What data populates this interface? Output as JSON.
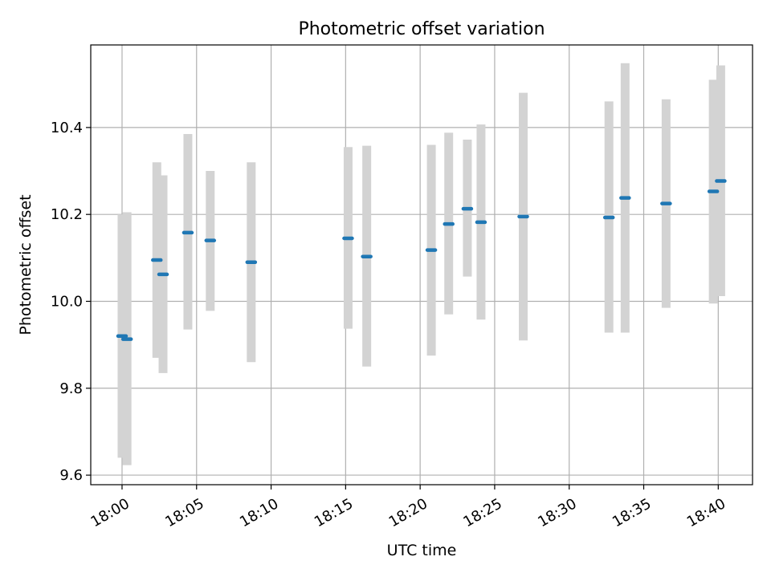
{
  "chart_data": {
    "type": "scatter",
    "title": "Photometric offset variation",
    "xlabel": "UTC time",
    "ylabel": "Photometric offset",
    "x_unit": "minutes after 18:00",
    "xlim": [
      -2.1,
      42.3
    ],
    "ylim": [
      9.578,
      10.59
    ],
    "grid": true,
    "x_ticks": [
      0,
      5,
      10,
      15,
      20,
      25,
      30,
      35,
      40
    ],
    "x_tick_labels": [
      "18:00",
      "18:05",
      "18:10",
      "18:15",
      "18:20",
      "18:25",
      "18:30",
      "18:35",
      "18:40"
    ],
    "y_ticks": [
      9.6,
      9.8,
      10.0,
      10.2,
      10.4
    ],
    "y_tick_labels": [
      "9.6",
      "9.8",
      "10.0",
      "10.2",
      "10.4"
    ],
    "colors": {
      "point": "#1f77b4",
      "errorbar": "#d3d3d3",
      "grid": "#b0b0b0"
    },
    "points": [
      {
        "time": "18:00:00",
        "y": 9.92,
        "ylow": 9.64,
        "yhigh": 10.2
      },
      {
        "time": "18:00:20",
        "y": 9.913,
        "ylow": 9.623,
        "yhigh": 10.205
      },
      {
        "time": "18:02:20",
        "y": 10.095,
        "ylow": 9.87,
        "yhigh": 10.32
      },
      {
        "time": "18:02:45",
        "y": 10.062,
        "ylow": 9.835,
        "yhigh": 10.29
      },
      {
        "time": "18:04:25",
        "y": 10.158,
        "ylow": 9.935,
        "yhigh": 10.385
      },
      {
        "time": "18:05:55",
        "y": 10.14,
        "ylow": 9.978,
        "yhigh": 10.3
      },
      {
        "time": "18:08:40",
        "y": 10.09,
        "ylow": 9.86,
        "yhigh": 10.32
      },
      {
        "time": "18:15:10",
        "y": 10.145,
        "ylow": 9.937,
        "yhigh": 10.355
      },
      {
        "time": "18:16:25",
        "y": 10.103,
        "ylow": 9.85,
        "yhigh": 10.358
      },
      {
        "time": "18:20:45",
        "y": 10.118,
        "ylow": 9.875,
        "yhigh": 10.36
      },
      {
        "time": "18:21:55",
        "y": 10.178,
        "ylow": 9.97,
        "yhigh": 10.388
      },
      {
        "time": "18:23:10",
        "y": 10.213,
        "ylow": 10.057,
        "yhigh": 10.372
      },
      {
        "time": "18:24:05",
        "y": 10.182,
        "ylow": 9.958,
        "yhigh": 10.407
      },
      {
        "time": "18:26:55",
        "y": 10.195,
        "ylow": 9.91,
        "yhigh": 10.48
      },
      {
        "time": "18:32:40",
        "y": 10.193,
        "ylow": 9.928,
        "yhigh": 10.46
      },
      {
        "time": "18:33:45",
        "y": 10.238,
        "ylow": 9.928,
        "yhigh": 10.548
      },
      {
        "time": "18:36:30",
        "y": 10.225,
        "ylow": 9.985,
        "yhigh": 10.465
      },
      {
        "time": "18:39:40",
        "y": 10.253,
        "ylow": 9.995,
        "yhigh": 10.51
      },
      {
        "time": "18:40:10",
        "y": 10.277,
        "ylow": 10.012,
        "yhigh": 10.543
      }
    ]
  }
}
